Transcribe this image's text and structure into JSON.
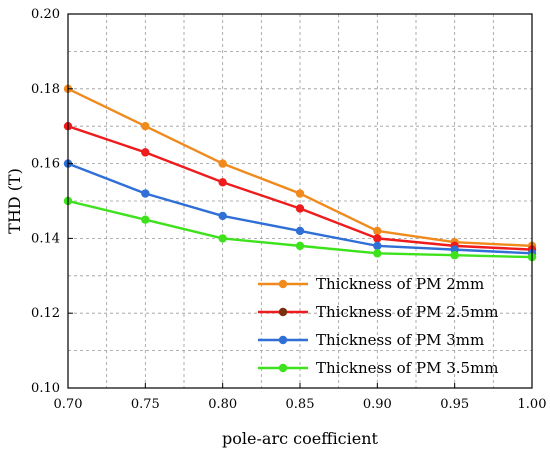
{
  "chart_data": {
    "type": "line",
    "title": "",
    "xlabel": "pole-arc coefficient",
    "ylabel": "THD (T)",
    "x": [
      0.7,
      0.75,
      0.8,
      0.85,
      0.9,
      0.95,
      1.0
    ],
    "xlim": [
      0.7,
      1.0
    ],
    "ylim": [
      0.1,
      0.2
    ],
    "xticks": [
      "0.70",
      "0.75",
      "0.80",
      "0.85",
      "0.90",
      "0.95",
      "1.00"
    ],
    "yticks": [
      "0.10",
      "0.12",
      "0.14",
      "0.16",
      "0.18",
      "0.20"
    ],
    "grid": true,
    "legend_position": "bottom-right",
    "series": [
      {
        "name": "Thickness of PM 2mm",
        "color": "#f08a1c",
        "values": [
          0.18,
          0.17,
          0.16,
          0.152,
          0.142,
          0.139,
          0.138
        ]
      },
      {
        "name": "Thickness of PM 2.5mm",
        "color": "#ee1c1c",
        "values": [
          0.17,
          0.163,
          0.155,
          0.148,
          0.14,
          0.138,
          0.137
        ]
      },
      {
        "name": "Thickness of PM 3mm",
        "color": "#2f6fd6",
        "values": [
          0.16,
          0.152,
          0.146,
          0.142,
          0.138,
          0.137,
          0.136
        ]
      },
      {
        "name": "Thickness of PM 3.5mm",
        "color": "#3ee21c",
        "values": [
          0.15,
          0.145,
          0.14,
          0.138,
          0.136,
          0.1355,
          0.135
        ]
      }
    ],
    "legend_marker_colors": [
      "#f08a1c",
      "#7a3010",
      "#2f6fd6",
      "#3ee21c"
    ]
  }
}
